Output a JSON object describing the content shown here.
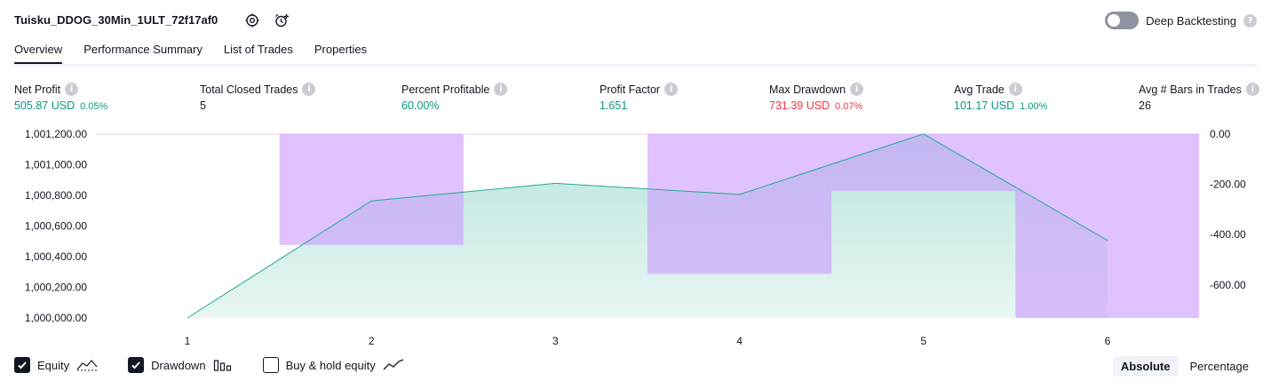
{
  "header": {
    "title": "Tuisku_DDOG_30Min_1ULT_72f17af0",
    "settings_icon": "gear-icon",
    "alert_icon": "alarm-clock-plus-icon",
    "deep_backtesting_label": "Deep Backtesting",
    "deep_backtesting_enabled": false
  },
  "tabs": [
    {
      "label": "Overview",
      "active": true
    },
    {
      "label": "Performance Summary",
      "active": false
    },
    {
      "label": "List of Trades",
      "active": false
    },
    {
      "label": "Properties",
      "active": false
    }
  ],
  "stats": [
    {
      "label": "Net Profit",
      "value": "505.87 USD",
      "pct": "0.05%",
      "tone": "green"
    },
    {
      "label": "Total Closed Trades",
      "value": "5",
      "pct": "",
      "tone": "dark"
    },
    {
      "label": "Percent Profitable",
      "value": "60.00%",
      "pct": "",
      "tone": "green"
    },
    {
      "label": "Profit Factor",
      "value": "1.651",
      "pct": "",
      "tone": "green"
    },
    {
      "label": "Max Drawdown",
      "value": "731.39 USD",
      "pct": "0.07%",
      "tone": "red"
    },
    {
      "label": "Avg Trade",
      "value": "101.17 USD",
      "pct": "1.00%",
      "tone": "green"
    },
    {
      "label": "Avg # Bars in Trades",
      "value": "26",
      "pct": "",
      "tone": "dark"
    }
  ],
  "chart_data": {
    "type": "area",
    "x": [
      1,
      2,
      3,
      4,
      5,
      6
    ],
    "x_tick_labels": [
      "1",
      "2",
      "3",
      "4",
      "5",
      "6"
    ],
    "left_axis": {
      "tick_labels": [
        "1,001,200.00",
        "1,001,000.00",
        "1,000,800.00",
        "1,000,600.00",
        "1,000,400.00",
        "1,000,200.00",
        "1,000,000.00"
      ],
      "ticks": [
        1001200,
        1001000,
        1000800,
        1000600,
        1000400,
        1000200,
        1000000
      ],
      "ylim": [
        1000000,
        1001200
      ]
    },
    "right_axis": {
      "tick_labels": [
        "0.00",
        "-200.00",
        "-400.00",
        "-600.00"
      ],
      "ticks": [
        0,
        -200,
        -400,
        -600
      ],
      "ylim": [
        -731.39,
        0
      ]
    },
    "series": [
      {
        "name": "Equity",
        "axis": "left",
        "values": [
          1000000,
          1000764,
          1000879,
          1000806,
          1001201,
          1000506
        ],
        "color": "#22ab94"
      },
      {
        "name": "Drawdown",
        "axis": "right",
        "type": "bar",
        "values": [
          0,
          -441,
          0,
          -556,
          -226,
          -731.39
        ],
        "color": "#cc99ff"
      }
    ],
    "grid": false
  },
  "legend": [
    {
      "label": "Equity",
      "checked": true,
      "icon": "equity-line-icon"
    },
    {
      "label": "Drawdown",
      "checked": true,
      "icon": "drawdown-bars-icon"
    },
    {
      "label": "Buy & hold equity",
      "checked": false,
      "icon": "buy-hold-line-icon"
    }
  ],
  "view_mode": {
    "absolute_label": "Absolute",
    "percentage_label": "Percentage",
    "selected": "Absolute"
  }
}
